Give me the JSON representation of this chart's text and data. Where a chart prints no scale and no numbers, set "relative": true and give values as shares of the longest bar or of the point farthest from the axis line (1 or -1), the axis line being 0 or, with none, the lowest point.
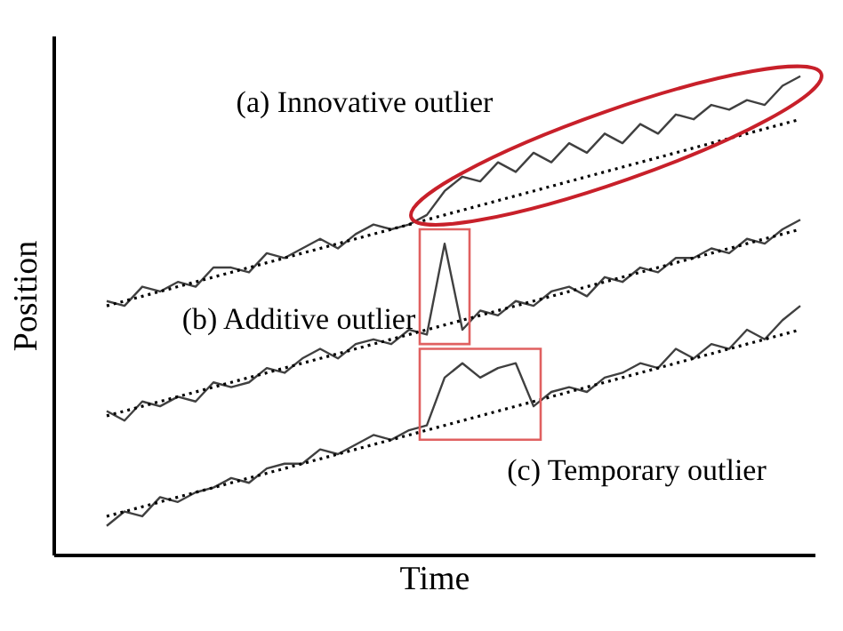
{
  "chart_data": {
    "type": "line",
    "relative": true,
    "xlabel": "Time",
    "ylabel": "Position",
    "grid": false,
    "tick_labels": false,
    "marker": "none",
    "categories": [
      null,
      null,
      null,
      null,
      null,
      null,
      null,
      null,
      null,
      null,
      null,
      null,
      null,
      null,
      null,
      null,
      null,
      null,
      null,
      null,
      null,
      null,
      null,
      null,
      null,
      null,
      null,
      null,
      null,
      null,
      null,
      null,
      null,
      null,
      null,
      null,
      null,
      null,
      null,
      null
    ],
    "series": [
      {
        "color": "#404040",
        "line_style": "solid",
        "values": [
          0.53,
          0.52,
          0.56,
          0.55,
          0.57,
          0.56,
          0.6,
          0.6,
          0.59,
          0.63,
          0.62,
          0.64,
          0.66,
          0.64,
          0.67,
          0.69,
          0.68,
          0.69,
          0.71,
          0.76,
          0.79,
          0.78,
          0.82,
          0.8,
          0.84,
          0.82,
          0.86,
          0.84,
          0.88,
          0.86,
          0.9,
          0.88,
          0.92,
          0.91,
          0.94,
          0.93,
          0.95,
          0.94,
          0.98,
          1.0
        ]
      },
      {
        "color": "#000000",
        "line_style": "dotted",
        "values": [
          0.52,
          0.53,
          0.54,
          0.55,
          0.56,
          0.57,
          0.58,
          0.59,
          0.6,
          0.61,
          0.62,
          0.63,
          0.64,
          0.65,
          0.66,
          0.67,
          0.68,
          0.69,
          0.7,
          0.71,
          0.72,
          0.73,
          0.74,
          0.75,
          0.76,
          0.77,
          0.78,
          0.79,
          0.8,
          0.81,
          0.82,
          0.83,
          0.84,
          0.85,
          0.86,
          0.87,
          0.88,
          0.89,
          0.9,
          0.91
        ]
      },
      {
        "color": "#404040",
        "line_style": "solid",
        "values": [
          0.3,
          0.28,
          0.32,
          0.31,
          0.33,
          0.32,
          0.36,
          0.35,
          0.36,
          0.39,
          0.38,
          0.41,
          0.43,
          0.41,
          0.44,
          0.45,
          0.44,
          0.47,
          0.46,
          0.65,
          0.47,
          0.51,
          0.5,
          0.53,
          0.52,
          0.55,
          0.56,
          0.54,
          0.58,
          0.57,
          0.6,
          0.59,
          0.62,
          0.62,
          0.64,
          0.63,
          0.66,
          0.65,
          0.68,
          0.7
        ]
      },
      {
        "color": "#000000",
        "line_style": "dotted",
        "values": [
          0.29,
          0.3,
          0.31,
          0.32,
          0.33,
          0.34,
          0.35,
          0.36,
          0.37,
          0.38,
          0.39,
          0.4,
          0.41,
          0.42,
          0.43,
          0.44,
          0.45,
          0.46,
          0.47,
          0.48,
          0.49,
          0.5,
          0.51,
          0.52,
          0.53,
          0.54,
          0.55,
          0.56,
          0.57,
          0.58,
          0.59,
          0.6,
          0.61,
          0.62,
          0.63,
          0.64,
          0.65,
          0.66,
          0.67,
          0.68
        ]
      },
      {
        "color": "#404040",
        "line_style": "solid",
        "values": [
          0.06,
          0.09,
          0.08,
          0.12,
          0.11,
          0.13,
          0.14,
          0.16,
          0.15,
          0.18,
          0.19,
          0.19,
          0.22,
          0.21,
          0.23,
          0.25,
          0.24,
          0.26,
          0.27,
          0.37,
          0.4,
          0.37,
          0.39,
          0.4,
          0.31,
          0.34,
          0.35,
          0.34,
          0.37,
          0.38,
          0.4,
          0.39,
          0.43,
          0.41,
          0.44,
          0.43,
          0.47,
          0.45,
          0.49,
          0.52
        ]
      },
      {
        "color": "#000000",
        "line_style": "dotted",
        "values": [
          0.08,
          0.09,
          0.1,
          0.11,
          0.12,
          0.13,
          0.14,
          0.15,
          0.16,
          0.17,
          0.18,
          0.19,
          0.2,
          0.21,
          0.22,
          0.23,
          0.24,
          0.25,
          0.26,
          0.27,
          0.28,
          0.29,
          0.3,
          0.31,
          0.32,
          0.33,
          0.34,
          0.35,
          0.36,
          0.37,
          0.38,
          0.39,
          0.4,
          0.41,
          0.42,
          0.43,
          0.44,
          0.45,
          0.46,
          0.47
        ]
      }
    ],
    "annotations": [
      "(a) Innovative outlier",
      "(b) Additive outlier",
      "(c) Temporary outlier"
    ]
  }
}
